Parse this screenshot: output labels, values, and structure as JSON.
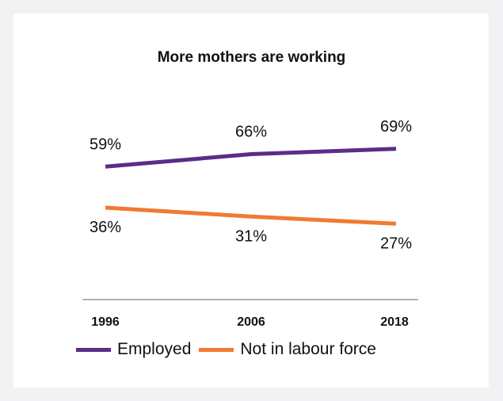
{
  "chart_data": {
    "type": "line",
    "title": "More mothers are working",
    "categories": [
      "1996",
      "2006",
      "2018"
    ],
    "series": [
      {
        "name": "Employed",
        "values": [
          59,
          66,
          69
        ],
        "labels": [
          "59%",
          "66%",
          "69%"
        ],
        "color": "#5b2d86"
      },
      {
        "name": "Not in labour force",
        "values": [
          36,
          31,
          27
        ],
        "labels": [
          "36%",
          "31%",
          "27%"
        ],
        "color": "#f07a32"
      }
    ],
    "xlabel": "",
    "ylabel": "",
    "grid": false,
    "legend_position": "bottom"
  },
  "colors": {
    "background": "#f2f2f4",
    "card": "#ffffff",
    "axis": "#999999"
  }
}
